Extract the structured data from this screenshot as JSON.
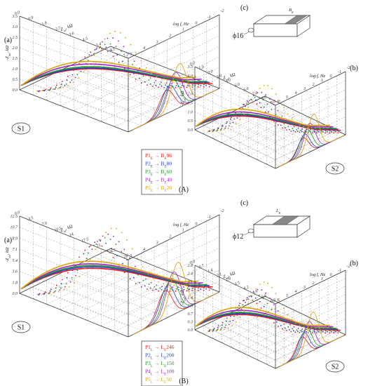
{
  "figure": {
    "panel_A_label": "(A)",
    "panel_B_label": "(B)"
  },
  "colors": {
    "P1": "#e41a1c",
    "P2": "#1f3fd6",
    "P3": "#1e9a1e",
    "P4": "#a020c8",
    "P5": "#d9a500",
    "grid": "#9a9a9a",
    "axis": "#333333"
  },
  "panelA": {
    "a": {
      "label": "(a)",
      "s_label": "S1",
      "z_axis_label": "Z_re, kΩ",
      "z_ticks": [
        "0.0",
        "0.9",
        "1.8",
        "2.7",
        "3.6",
        "4.5",
        "5.4",
        "6.3",
        "7.2"
      ],
      "im_axis_label": "-Z_im, kΩ",
      "im_ticks": [
        "0.0",
        "0.5",
        "1.0",
        "1.5",
        "2.0",
        "2.5",
        "3.0",
        "3.5"
      ],
      "f_axis_label": "log f, Hz",
      "f_ticks": [
        "5",
        "4",
        "3",
        "2",
        "1",
        "0",
        "-1",
        "-2"
      ]
    },
    "b": {
      "label": "(b)",
      "s_label": "S2",
      "z_axis_label": "Z_re, kΩ",
      "z_ticks": [
        "0.0",
        "1.0",
        "2.0",
        "3.0",
        "4.0",
        "5.0",
        "6.0",
        "7.0",
        "8.0",
        "9.0"
      ],
      "im_axis_label": "-Z_im, kΩ",
      "im_ticks": [
        "0.0",
        "0.5",
        "1.0",
        "1.5",
        "2.0",
        "2.5",
        "3.0",
        "3.5"
      ],
      "f_axis_label": "log f, Hz",
      "f_ticks": [
        "6",
        "5",
        "4",
        "3",
        "2",
        "1",
        "0",
        "-1",
        "-2"
      ]
    },
    "c": {
      "label": "(c)",
      "diameter": "ϕ16",
      "dim": "B_E"
    },
    "legend": [
      {
        "series": "P1",
        "sub": "E",
        "target": "B",
        "tsub": "E",
        "value": "96"
      },
      {
        "series": "P2",
        "sub": "E",
        "target": "B",
        "tsub": "E",
        "value": "80"
      },
      {
        "series": "P3",
        "sub": "E",
        "target": "B",
        "tsub": "E",
        "value": "60"
      },
      {
        "series": "P4",
        "sub": "E",
        "target": "B",
        "tsub": "E",
        "value": "40"
      },
      {
        "series": "P5",
        "sub": "E",
        "target": "B",
        "tsub": "E",
        "value": "20"
      }
    ]
  },
  "panelB": {
    "a": {
      "label": "(a)",
      "s_label": "S1",
      "z_axis_label": "Z_re, kΩ",
      "z_ticks": [
        "0.0",
        "3.5",
        "7.0",
        "10.5",
        "14",
        "17.5",
        "21",
        "24.5",
        "28"
      ],
      "im_axis_label": "-Z_im, kΩ",
      "im_ticks": [
        "0.0",
        "1.8",
        "3.6",
        "5.4",
        "7.1",
        "8.9",
        "10.7",
        "12.5"
      ],
      "f_axis_label": "log f, Hz",
      "f_ticks": [
        "5",
        "4",
        "3",
        "2",
        "1",
        "0",
        "-1",
        "-2"
      ]
    },
    "b": {
      "label": "(b)",
      "s_label": "S2",
      "z_axis_label": "Z_re, kΩ",
      "z_ticks": [
        "0.0",
        "0.7",
        "1.4",
        "2.1",
        "2.8",
        "3.5",
        "4.2",
        "4.9",
        "5.6",
        "6.3"
      ],
      "im_axis_label": "-Z_im, kΩ",
      "im_ticks": [
        "0.0",
        "0.3",
        "0.7",
        "1.0",
        "1.4",
        "1.7",
        "2.1",
        "2.4",
        "2.8"
      ],
      "f_axis_label": "log f, Hz",
      "f_ticks": [
        "6",
        "5",
        "4",
        "3",
        "2",
        "1",
        "0",
        "-1",
        "-2"
      ]
    },
    "c": {
      "label": "(c)",
      "diameter": "ϕ12",
      "dim": "L_E"
    },
    "legend": [
      {
        "series": "P1",
        "sub": "L",
        "target": "L",
        "tsub": "E",
        "value": "246"
      },
      {
        "series": "P2",
        "sub": "L",
        "target": "L",
        "tsub": "E",
        "value": "200"
      },
      {
        "series": "P3",
        "sub": "L",
        "target": "L",
        "tsub": "E",
        "value": "150"
      },
      {
        "series": "P4",
        "sub": "L",
        "target": "L",
        "tsub": "E",
        "value": "100"
      },
      {
        "series": "P5",
        "sub": "L",
        "target": "L",
        "tsub": "E",
        "value": "50"
      }
    ]
  }
}
